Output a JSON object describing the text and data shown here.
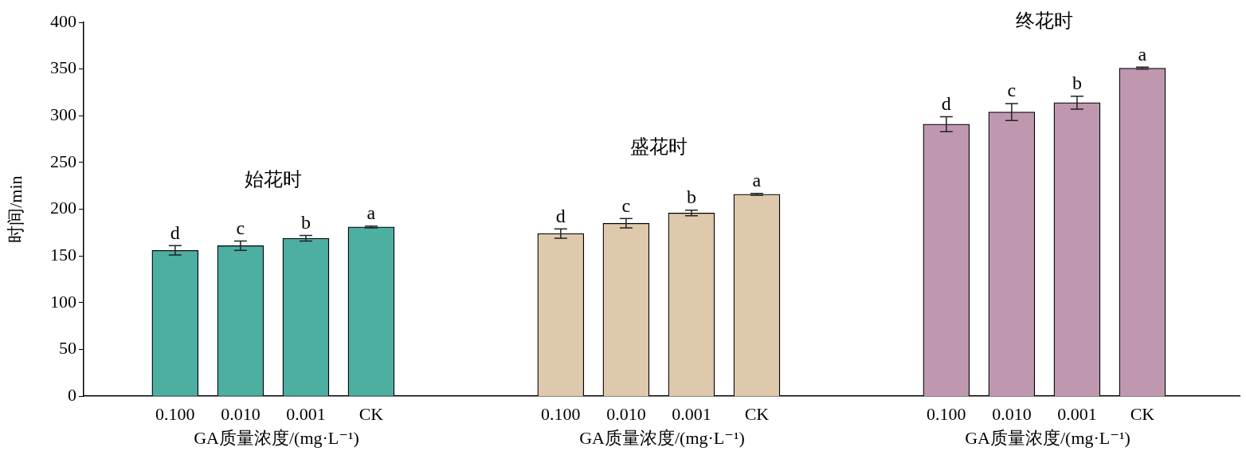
{
  "chart_data": [
    {
      "type": "bar",
      "title": "始花时",
      "ylabel": "时间/min",
      "xlabel": "GA质量浓度/(mg·L⁻¹)",
      "categories": [
        "0.100",
        "0.010",
        "0.001",
        "CK"
      ],
      "values": [
        156,
        161,
        169,
        181
      ],
      "errors": [
        5,
        5,
        3,
        1
      ],
      "color": "#4daea2",
      "ylim": [
        0,
        400
      ],
      "yticks": [
        0,
        50,
        100,
        150,
        200,
        250,
        300,
        350,
        400
      ],
      "annotations": [
        {
          "text": "d",
          "x": "0.100",
          "y": 161
        },
        {
          "text": "c",
          "x": "0.010",
          "y": 166
        },
        {
          "text": "b",
          "x": "0.001",
          "y": 172
        },
        {
          "text": "a",
          "x": "CK",
          "y": 182
        }
      ]
    },
    {
      "type": "bar",
      "title": "盛花时",
      "xlabel": "GA质量浓度/(mg·L⁻¹)",
      "categories": [
        "0.100",
        "0.010",
        "0.001",
        "CK"
      ],
      "values": [
        174,
        185,
        196,
        216
      ],
      "errors": [
        5,
        5,
        3,
        1
      ],
      "color": "#dfc9ad",
      "ylim": [
        0,
        400
      ],
      "yticks": [
        0,
        50,
        100,
        150,
        200,
        250,
        300,
        350,
        400
      ],
      "tick_labels": "x",
      "annotations": [
        {
          "text": "d",
          "x": "0.100",
          "y": 179
        },
        {
          "text": "c",
          "x": "0.010",
          "y": 190
        },
        {
          "text": "b",
          "x": "0.001",
          "y": 199
        },
        {
          "text": "a",
          "x": "CK",
          "y": 217
        }
      ]
    },
    {
      "type": "bar",
      "title": "终花时",
      "xlabel": "GA质量浓度/(mg·L⁻¹)",
      "categories": [
        "0.100",
        "0.010",
        "0.001",
        "CK"
      ],
      "values": [
        291,
        304,
        314,
        351
      ],
      "errors": [
        8,
        9,
        7,
        1
      ],
      "color": "#bf98b0",
      "ylim": [
        0,
        400
      ],
      "yticks": [
        0,
        50,
        100,
        150,
        200,
        250,
        300,
        350,
        400
      ],
      "tick_labels": "x",
      "annotations": [
        {
          "text": "d",
          "x": "0.100",
          "y": 299
        },
        {
          "text": "c",
          "x": "0.010",
          "y": 313
        },
        {
          "text": "b",
          "x": "0.001",
          "y": 321
        },
        {
          "text": "a",
          "x": "CK",
          "y": 352
        }
      ]
    }
  ]
}
